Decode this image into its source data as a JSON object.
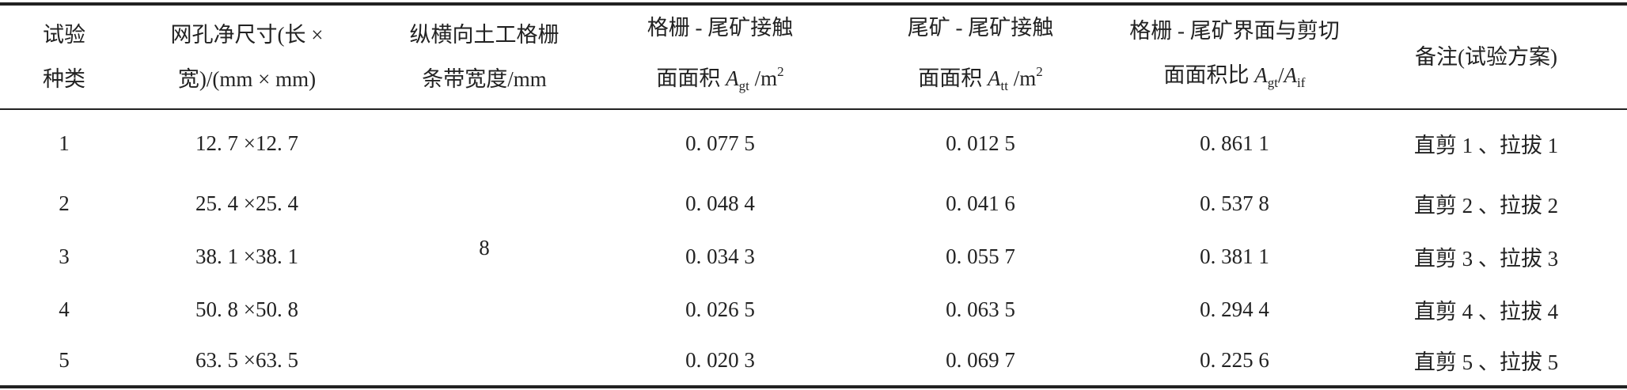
{
  "table": {
    "header": [
      [
        [
          "试验"
        ],
        [
          "种类"
        ]
      ],
      [
        [
          "网孔净尺寸(长 ×"
        ],
        [
          "宽)/(mm × mm)"
        ]
      ],
      [
        [
          "纵横向土工格栅"
        ],
        [
          "条带宽度/mm"
        ]
      ],
      [
        [
          "格栅 - 尾矿接触"
        ],
        [
          "面面积 ",
          {
            "text": "A",
            "style": "italic"
          },
          {
            "text": "gt",
            "style": "sub"
          },
          " /m",
          {
            "text": "2",
            "style": "sup"
          }
        ]
      ],
      [
        [
          "尾矿 - 尾矿接触"
        ],
        [
          "面面积 ",
          {
            "text": "A",
            "style": "italic"
          },
          {
            "text": "tt",
            "style": "sub"
          },
          " /m",
          {
            "text": "2",
            "style": "sup"
          }
        ]
      ],
      [
        [
          "格栅 - 尾矿界面与剪切"
        ],
        [
          "面面积比 ",
          {
            "text": "A",
            "style": "italic"
          },
          {
            "text": "gt",
            "style": "sub"
          },
          "/",
          {
            "text": "A",
            "style": "italic"
          },
          {
            "text": "if",
            "style": "sub"
          }
        ]
      ],
      [
        [
          "备注(试验方案)"
        ]
      ]
    ],
    "strip_width": "8",
    "rows": [
      [
        "1",
        "12. 7 ×12. 7",
        "0. 077 5",
        "0. 012 5",
        "0. 861 1",
        "直剪 1 、拉拔 1"
      ],
      [
        "2",
        "25. 4 ×25. 4",
        "0. 048 4",
        "0. 041 6",
        "0. 537 8",
        "直剪 2 、拉拔 2"
      ],
      [
        "3",
        "38. 1 ×38. 1",
        "0. 034 3",
        "0. 055 7",
        "0. 381 1",
        "直剪 3 、拉拔 3"
      ],
      [
        "4",
        "50. 8 ×50. 8",
        "0. 026 5",
        "0. 063 5",
        "0. 294 4",
        "直剪 4 、拉拔 4"
      ],
      [
        "5",
        "63. 5 ×63. 5",
        "0. 020 3",
        "0. 069 7",
        "0. 225 6",
        "直剪 5 、拉拔 5"
      ]
    ]
  }
}
